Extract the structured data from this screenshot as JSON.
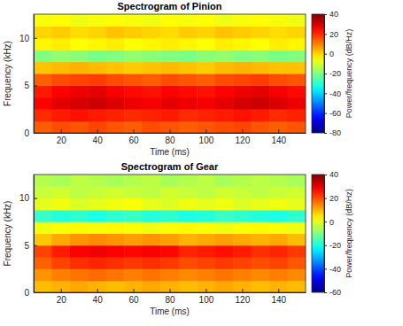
{
  "chart_data": [
    {
      "type": "heatmap",
      "title": "Spectrogram of Pinion",
      "x_label": "Time (ms)",
      "y_label": "Frequency (kHz)",
      "x": [
        10,
        20,
        30,
        40,
        50,
        60,
        70,
        80,
        90,
        100,
        110,
        120,
        130,
        140,
        150
      ],
      "y": [
        0.625,
        1.875,
        3.125,
        4.375,
        5.625,
        6.875,
        8.125,
        9.375,
        10.625,
        11.875
      ],
      "values": [
        [
          14,
          16,
          15,
          17,
          15,
          14,
          16,
          15,
          14,
          15,
          16,
          17,
          15,
          14,
          15
        ],
        [
          20,
          22,
          23,
          22,
          21,
          20,
          21,
          22,
          20,
          21,
          22,
          23,
          22,
          20,
          21
        ],
        [
          25,
          28,
          30,
          31,
          29,
          27,
          26,
          28,
          27,
          26,
          28,
          30,
          31,
          29,
          27
        ],
        [
          22,
          25,
          27,
          28,
          26,
          24,
          23,
          25,
          24,
          23,
          25,
          27,
          28,
          26,
          24
        ],
        [
          14,
          16,
          17,
          18,
          16,
          15,
          14,
          16,
          15,
          14,
          16,
          17,
          18,
          16,
          15
        ],
        [
          2,
          3,
          4,
          3,
          2,
          1,
          2,
          3,
          2,
          1,
          3,
          4,
          3,
          2,
          2
        ],
        [
          -20,
          -18,
          -19,
          -21,
          -20,
          -18,
          -19,
          -20,
          -21,
          -19,
          -18,
          -20,
          -19,
          -21,
          -20
        ],
        [
          -4,
          -3,
          -5,
          -4,
          -3,
          -5,
          -4,
          -3,
          -4,
          -5,
          -3,
          -4,
          -5,
          -3,
          -4
        ],
        [
          0,
          1,
          -1,
          0,
          2,
          1,
          0,
          -1,
          1,
          0,
          2,
          1,
          0,
          -1,
          0
        ],
        [
          -6,
          -5,
          -7,
          -6,
          -5,
          -6,
          -7,
          -5,
          -6,
          -5,
          -7,
          -6,
          -5,
          -6,
          -7
        ]
      ],
      "xlim": [
        5,
        155
      ],
      "xticks": [
        20,
        40,
        60,
        80,
        100,
        120,
        140
      ],
      "ylim": [
        0,
        12.5
      ],
      "yticks": [
        0,
        5,
        10
      ],
      "color_range": [
        -80,
        40
      ],
      "color_ticks": [
        -80,
        -60,
        -40,
        -20,
        0,
        20,
        40
      ],
      "color_label": "Power/frequency (dB/Hz)"
    },
    {
      "type": "heatmap",
      "title": "Spectrogram of Gear",
      "x_label": "Time (ms)",
      "y_label": "Frequency (kHz)",
      "x": [
        10,
        20,
        30,
        40,
        50,
        60,
        70,
        80,
        90,
        100,
        110,
        120,
        130,
        140,
        150
      ],
      "y": [
        0.625,
        1.875,
        3.125,
        4.375,
        5.625,
        6.875,
        8.125,
        9.375,
        10.625,
        11.875
      ],
      "values": [
        [
          9,
          10,
          11,
          10,
          9,
          10,
          11,
          10,
          9,
          10,
          11,
          10,
          9,
          10,
          9
        ],
        [
          13,
          15,
          16,
          17,
          16,
          15,
          16,
          15,
          14,
          15,
          16,
          15,
          14,
          15,
          14
        ],
        [
          18,
          21,
          23,
          24,
          23,
          22,
          23,
          22,
          20,
          21,
          22,
          21,
          20,
          21,
          19
        ],
        [
          21,
          25,
          28,
          29,
          28,
          27,
          28,
          27,
          24,
          25,
          26,
          25,
          23,
          24,
          22
        ],
        [
          8,
          11,
          13,
          14,
          13,
          12,
          13,
          12,
          10,
          11,
          12,
          11,
          10,
          11,
          9
        ],
        [
          1,
          2,
          3,
          2,
          3,
          2,
          1,
          2,
          3,
          2,
          1,
          2,
          3,
          2,
          1
        ],
        [
          -17,
          -19,
          -18,
          -20,
          -18,
          -17,
          -19,
          -18,
          -20,
          -19,
          -17,
          -18,
          -19,
          -20,
          -18
        ],
        [
          0,
          1,
          -1,
          0,
          1,
          2,
          0,
          -1,
          1,
          0,
          1,
          -1,
          0,
          1,
          0
        ],
        [
          -3,
          -2,
          -4,
          -3,
          -2,
          -3,
          -4,
          -2,
          -3,
          -4,
          -2,
          -3,
          -4,
          -3,
          -2
        ],
        [
          -5,
          -6,
          -4,
          -5,
          -6,
          -5,
          -4,
          -6,
          -5,
          -4,
          -6,
          -5,
          -4,
          -5,
          -6
        ]
      ],
      "xlim": [
        5,
        155
      ],
      "xticks": [
        20,
        40,
        60,
        80,
        100,
        120,
        140
      ],
      "ylim": [
        0,
        12.5
      ],
      "yticks": [
        0,
        5,
        10
      ],
      "color_range": [
        -60,
        40
      ],
      "color_ticks": [
        -60,
        -40,
        -20,
        0,
        20,
        40
      ],
      "color_label": "Power/frequency (dB/Hz)"
    }
  ]
}
